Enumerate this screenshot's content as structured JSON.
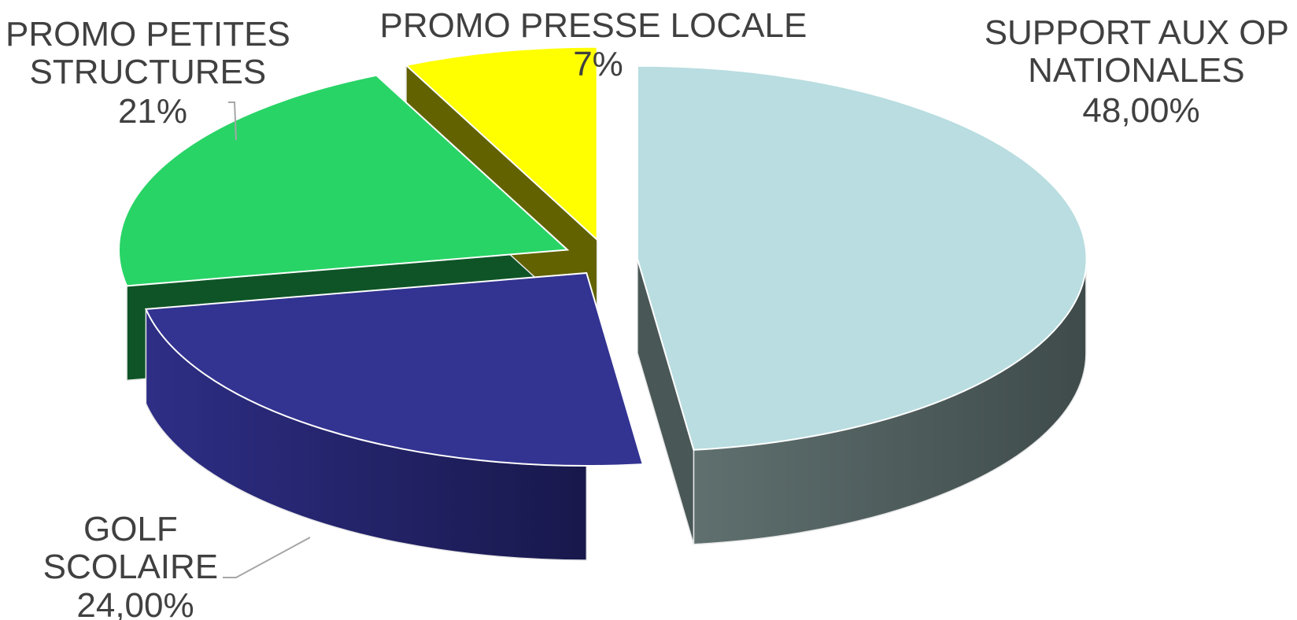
{
  "chart_data": {
    "type": "pie",
    "style": "3d-exploded",
    "categories": [
      "SUPPORT AUX OP NATIONALES",
      "GOLF SCOLAIRE",
      "PROMO PETITES STRUCTURES",
      "PROMO PRESSE LOCALE"
    ],
    "values": [
      48,
      24,
      21,
      7
    ],
    "value_labels": [
      "48,00%",
      "24,00%",
      "21%",
      "7%"
    ],
    "label_lines": [
      [
        "SUPPORT AUX OP",
        "NATIONALES"
      ],
      [
        "GOLF",
        "SCOLAIRE"
      ],
      [
        "PROMO PETITES",
        "STRUCTURES"
      ],
      [
        "PROMO PRESSE LOCALE"
      ]
    ],
    "colors": {
      "top": [
        "#b9dde0",
        "#333392",
        "#28d466",
        "#ffff00"
      ],
      "side": [
        "#4a5757",
        "#1f1f60",
        "#0f5427",
        "#626200"
      ]
    },
    "legend": "none",
    "title": ""
  }
}
